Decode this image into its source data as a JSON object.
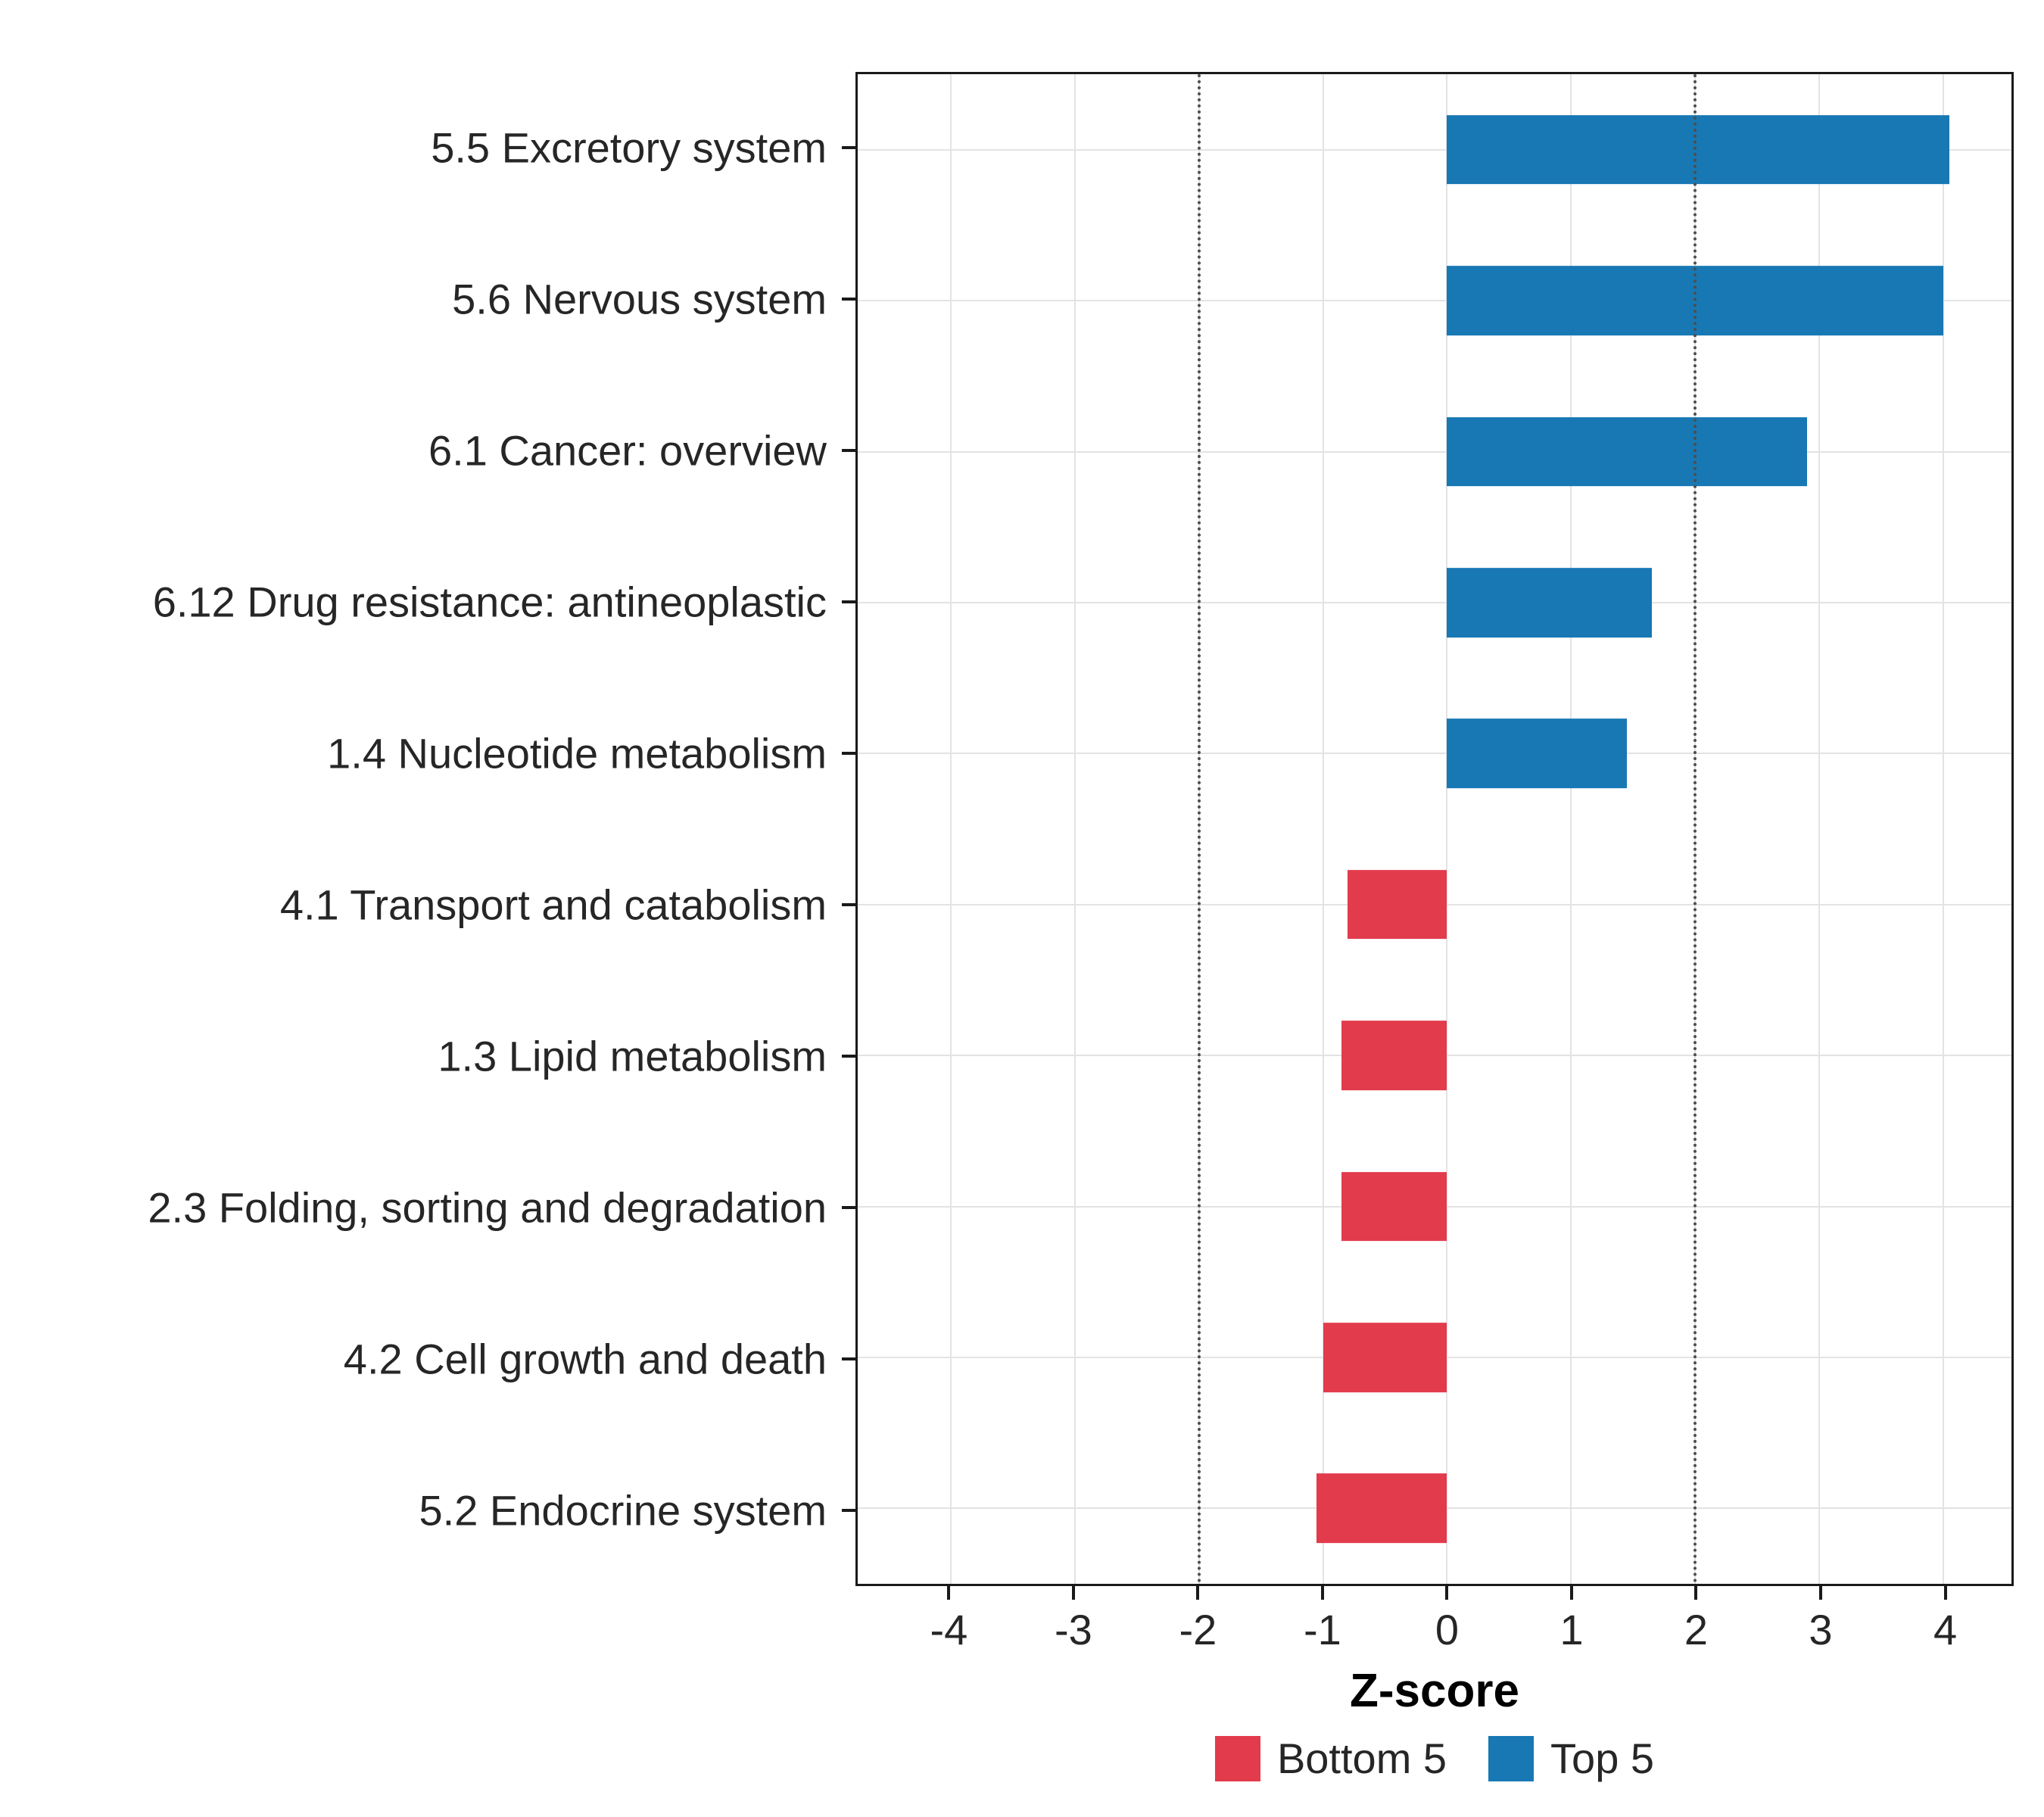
{
  "chart_data": {
    "type": "bar",
    "orientation": "horizontal",
    "title": "",
    "xlabel": "Z-score",
    "ylabel": "",
    "xlim": [
      -4.75,
      4.55
    ],
    "x_ticks": [
      -4,
      -3,
      -2,
      -1,
      0,
      1,
      2,
      3,
      4
    ],
    "x_tick_labels": [
      "-4",
      "-3",
      "-2",
      "-1",
      "0",
      "1",
      "2",
      "3",
      "4"
    ],
    "reference_lines": [
      -2,
      2
    ],
    "grid": true,
    "legend_position": "bottom",
    "categories": [
      "5.5 Excretory system",
      "5.6 Nervous system",
      "6.1 Cancer: overview",
      "6.12 Drug resistance: antineoplastic",
      "1.4 Nucleotide metabolism",
      "4.1 Transport and catabolism",
      "1.3 Lipid metabolism",
      "2.3 Folding, sorting and degradation",
      "4.2 Cell growth and death",
      "5.2 Endocrine system"
    ],
    "values": [
      4.05,
      4.0,
      2.9,
      1.65,
      1.45,
      -0.8,
      -0.85,
      -0.85,
      -1.0,
      -1.05
    ],
    "groups": [
      "Top 5",
      "Top 5",
      "Top 5",
      "Top 5",
      "Top 5",
      "Bottom 5",
      "Bottom 5",
      "Bottom 5",
      "Bottom 5",
      "Bottom 5"
    ],
    "legend": [
      {
        "label": "Bottom 5",
        "color": "#E23B4C"
      },
      {
        "label": "Top 5",
        "color": "#1878B4"
      }
    ],
    "colors": {
      "Top 5": "#1878B4",
      "Bottom 5": "#E23B4C",
      "reference_line": "#4D4D4D",
      "gridline": "#E3E3E3",
      "panel_border": "#1A1A1A"
    }
  }
}
